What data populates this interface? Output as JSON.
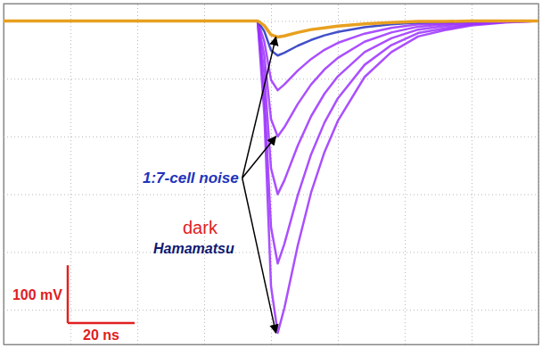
{
  "chart_data": {
    "type": "line",
    "x": [
      0,
      20,
      40,
      60,
      76,
      78,
      80,
      82,
      84,
      88,
      92,
      96,
      100,
      108,
      116,
      124,
      132,
      140,
      150,
      160
    ],
    "series": [
      {
        "color": "#9b30ff",
        "values": [
          0,
          0,
          0,
          0,
          0,
          -162,
          -459,
          -540,
          -497,
          -389,
          -297,
          -227,
          -173,
          -97,
          -54,
          -27,
          -16,
          -8,
          -3,
          0
        ]
      },
      {
        "color": "#9b30ff",
        "values": [
          0,
          0,
          0,
          0,
          0,
          -126,
          -357,
          -420,
          -386,
          -302,
          -231,
          -176,
          -134,
          -76,
          -42,
          -21,
          -13,
          -6,
          -2,
          0
        ]
      },
      {
        "color": "#9b30ff",
        "values": [
          0,
          0,
          0,
          0,
          0,
          -90,
          -255,
          -300,
          -276,
          -216,
          -165,
          -126,
          -96,
          -54,
          -30,
          -15,
          -9,
          -5,
          -2,
          0
        ]
      },
      {
        "color": "#9b30ff",
        "values": [
          0,
          0,
          0,
          0,
          0,
          -60,
          -170,
          -200,
          -184,
          -144,
          -110,
          -84,
          -64,
          -36,
          -20,
          -10,
          -6,
          -3,
          -1,
          0
        ]
      },
      {
        "color": "#9b30ff",
        "values": [
          0,
          0,
          0,
          0,
          0,
          -36,
          -102,
          -120,
          -110,
          -86,
          -66,
          -50,
          -38,
          -22,
          -12,
          -6,
          -4,
          -2,
          -1,
          0
        ]
      },
      {
        "color": "#2030c0",
        "values": [
          0,
          0,
          0,
          0,
          0,
          -18,
          -51,
          -60,
          -55,
          -43,
          -33,
          -25,
          -19,
          -11,
          -6,
          -3,
          -2,
          -1,
          0,
          0
        ]
      },
      {
        "color": "#e8a020",
        "values": [
          0,
          0,
          0,
          0,
          0,
          -8,
          -24,
          -28,
          -26,
          -20,
          -15,
          -12,
          -9,
          -5,
          -3,
          -1,
          -1,
          0,
          0,
          0
        ]
      }
    ],
    "xlim": [
      0,
      160
    ],
    "xticks": [
      0,
      20,
      40,
      60,
      80,
      100,
      120,
      140,
      160
    ],
    "ylim": [
      -560,
      30
    ],
    "yticks": [
      -500,
      -400,
      -300,
      -200,
      -100,
      0
    ],
    "grid": true,
    "tick_labels": false,
    "annotations": [
      {
        "text": "1:7-cell noise",
        "color": "#2233bb"
      },
      {
        "text": "dark",
        "color": "#e02020"
      },
      {
        "text": "Hamamatsu",
        "color": "#101870"
      }
    ],
    "scale_bars": [
      {
        "axis": "y",
        "value": 100,
        "label": "100 mV",
        "color": "#e02020"
      },
      {
        "axis": "x",
        "value": 20,
        "label": "20 ns",
        "color": "#e02020"
      }
    ]
  }
}
